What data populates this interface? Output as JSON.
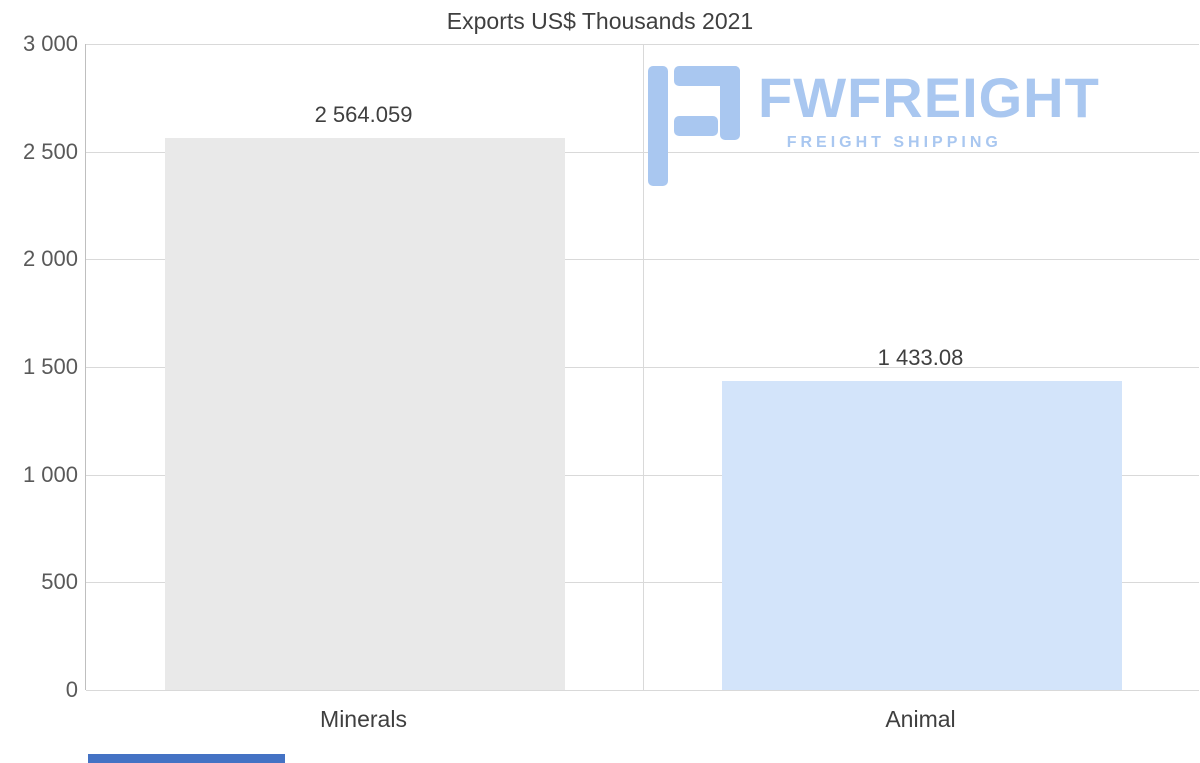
{
  "chart_data": {
    "type": "bar",
    "title": "Exports US$ Thousands 2021",
    "categories": [
      "Minerals",
      "Animal"
    ],
    "values": [
      2564.059,
      1433.08
    ],
    "value_labels": [
      "2 564.059",
      "1 433.08"
    ],
    "bar_colors": [
      "#e9e9e9",
      "#d3e4fa"
    ],
    "xlabel": "",
    "ylabel": "",
    "ylim": [
      0,
      3000
    ],
    "y_ticks": [
      {
        "value": 3000,
        "label": "3 000"
      },
      {
        "value": 2500,
        "label": "2 500"
      },
      {
        "value": 2000,
        "label": "2 000"
      },
      {
        "value": 1500,
        "label": "1 500"
      },
      {
        "value": 1000,
        "label": "1 000"
      },
      {
        "value": 500,
        "label": "500"
      },
      {
        "value": 0,
        "label": "0"
      }
    ],
    "grid": true,
    "legend": "none"
  },
  "watermark": {
    "brand": "FWFREIGHT",
    "tagline": "FREIGHT SHIPPING",
    "color": "#a9c7f0"
  },
  "accent_bar": {
    "color": "#4472c4"
  },
  "colors": {
    "background": "#ffffff",
    "title_text": "#3f3f3f",
    "tick_text": "#595959",
    "gridline": "#d9d9d9",
    "axis_line": "#bfbfbf"
  }
}
